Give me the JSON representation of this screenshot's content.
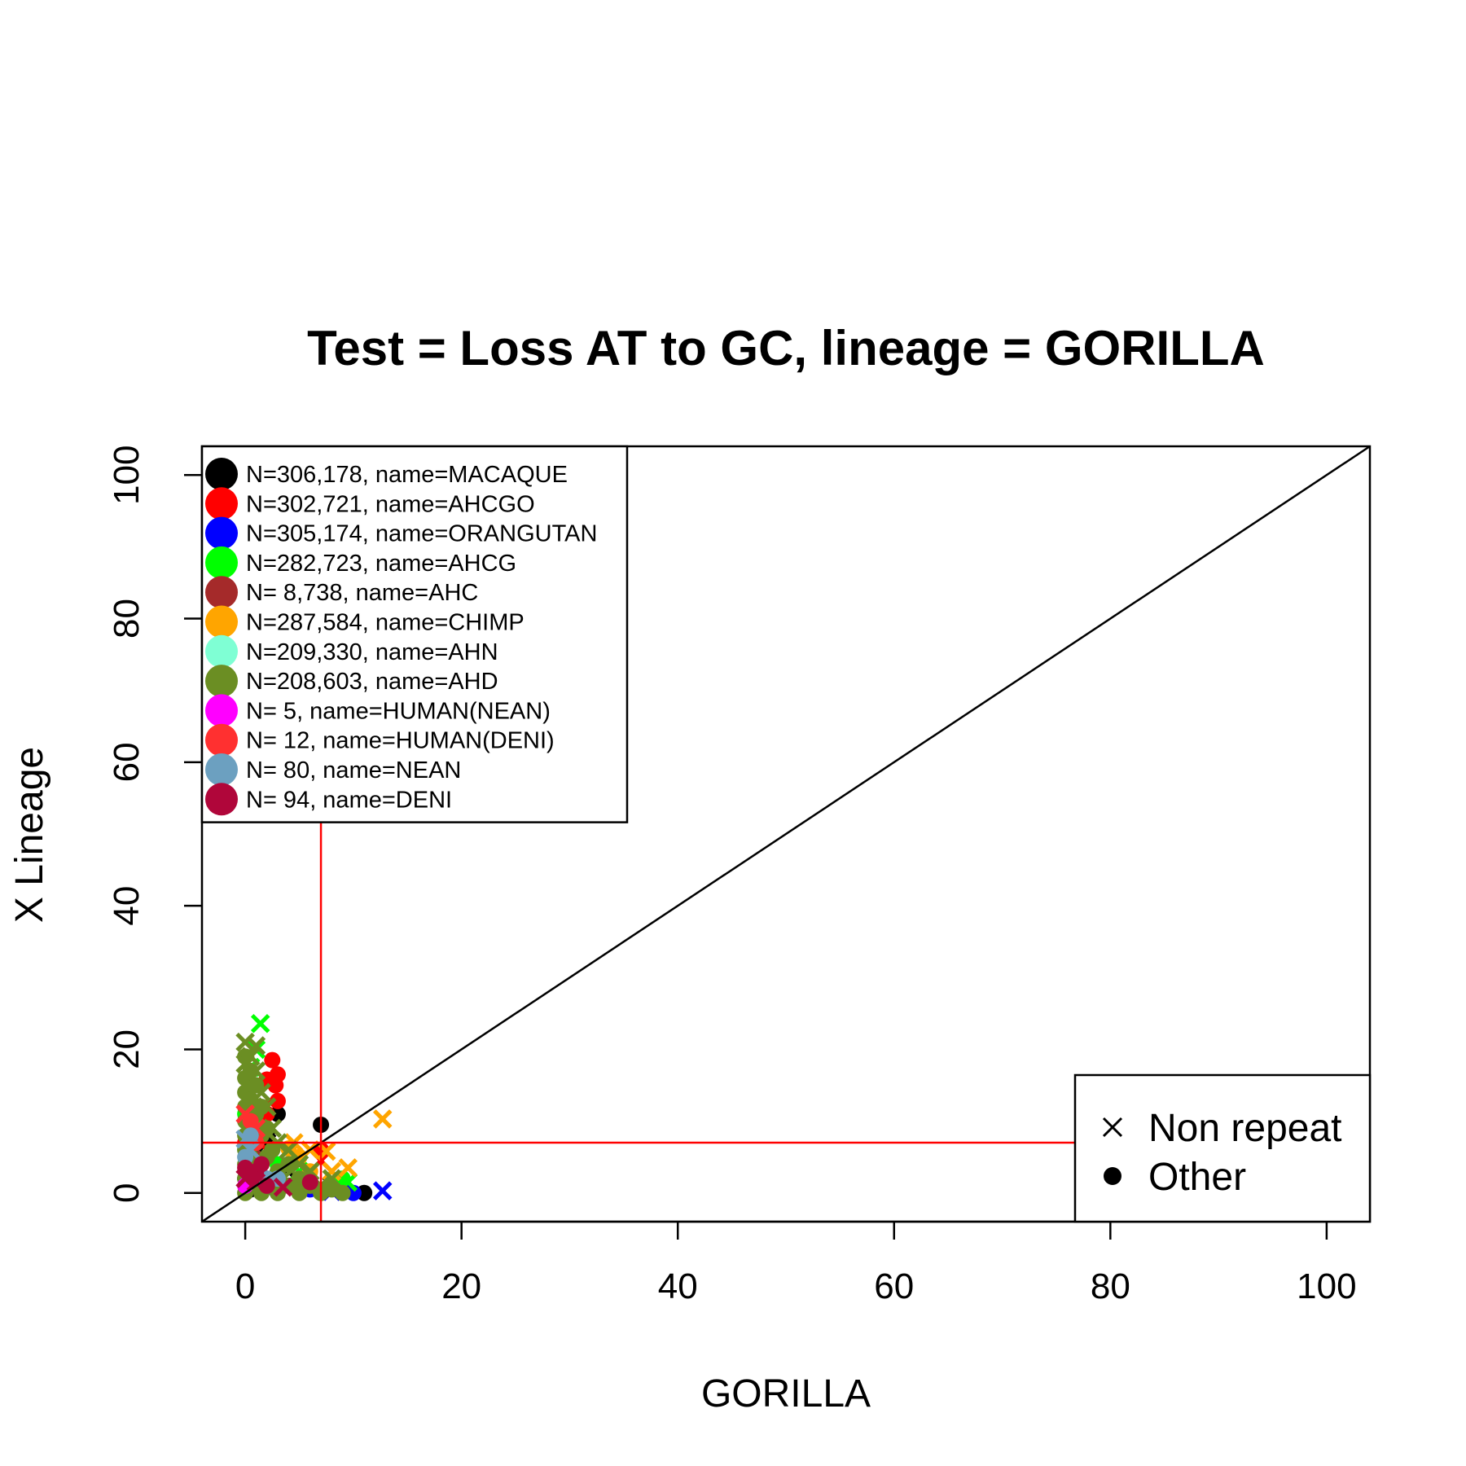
{
  "chart_data": {
    "type": "scatter",
    "title": "Test = Loss AT to GC, lineage = GORILLA",
    "xlabel": "GORILLA",
    "ylabel": "X Lineage",
    "xlim": [
      -4,
      104
    ],
    "ylim": [
      -4,
      104
    ],
    "xticks": [
      0,
      20,
      40,
      60,
      80,
      100
    ],
    "yticks": [
      0,
      20,
      40,
      60,
      80,
      100
    ],
    "reference_lines": {
      "diagonal": "y = x",
      "vertical_x": 7,
      "horizontal_y": 7,
      "threshold_color": "#ff0000"
    },
    "series": [
      {
        "label": "N=306,178, name=MACAQUE",
        "color": "#000000",
        "other": [
          [
            0,
            2
          ],
          [
            1,
            5
          ],
          [
            2,
            8
          ],
          [
            3,
            11
          ],
          [
            7,
            9.5
          ],
          [
            11,
            0
          ],
          [
            5,
            2
          ],
          [
            0.5,
            0.5
          ],
          [
            1,
            1
          ]
        ],
        "nonrepeat": [
          [
            1,
            4
          ],
          [
            2,
            7
          ],
          [
            4,
            3
          ],
          [
            8,
            1
          ]
        ]
      },
      {
        "label": "N=302,721, name=AHCGO",
        "color": "#ff0000",
        "other": [
          [
            2.5,
            18.5
          ],
          [
            3,
            16.5
          ],
          [
            2.8,
            15
          ],
          [
            3,
            12.8
          ],
          [
            2,
            11
          ],
          [
            2,
            15.8
          ],
          [
            1,
            9
          ],
          [
            0,
            7
          ],
          [
            7,
            6
          ]
        ],
        "nonrepeat": [
          [
            1.5,
            12
          ],
          [
            2,
            6
          ],
          [
            7,
            4.5
          ]
        ]
      },
      {
        "label": "N=305,174, name=ORANGUTAN",
        "color": "#0000ff",
        "other": [
          [
            4,
            1
          ],
          [
            6,
            0.5
          ],
          [
            9,
            0.5
          ],
          [
            10,
            0
          ]
        ],
        "nonrepeat": [
          [
            12.7,
            0.3
          ],
          [
            8,
            0.2
          ],
          [
            2,
            0.5
          ]
        ]
      },
      {
        "label": "N=282,723, name=AHCG",
        "color": "#00ff00",
        "other": [
          [
            0,
            11
          ],
          [
            1,
            9.5
          ],
          [
            3,
            4
          ],
          [
            9,
            2
          ]
        ],
        "nonrepeat": [
          [
            1.4,
            23.6
          ],
          [
            1,
            20
          ],
          [
            0.5,
            17.5
          ],
          [
            9.5,
            1.5
          ],
          [
            5,
            3
          ]
        ]
      },
      {
        "label": "N=  8,738, name=AHC",
        "color": "#a52a2a",
        "other": [
          [
            0.5,
            8
          ],
          [
            1,
            4
          ],
          [
            2,
            2
          ]
        ],
        "nonrepeat": [
          [
            1,
            6
          ]
        ]
      },
      {
        "label": "N=287,584, name=CHIMP",
        "color": "#ffa500",
        "other": [
          [
            5,
            5
          ],
          [
            6,
            3
          ],
          [
            4,
            6.2
          ],
          [
            3,
            2.5
          ]
        ],
        "nonrepeat": [
          [
            12.7,
            10.3
          ],
          [
            7.5,
            5.8
          ],
          [
            9.5,
            3.5
          ],
          [
            6,
            6
          ],
          [
            4.5,
            7
          ],
          [
            8,
            3
          ]
        ]
      },
      {
        "label": "N=209,330, name=AHN",
        "color": "#7fffd4",
        "other": [
          [
            0,
            6
          ],
          [
            1,
            2
          ],
          [
            0.5,
            3
          ]
        ],
        "nonrepeat": [
          [
            0.5,
            4
          ],
          [
            1,
            3
          ]
        ]
      },
      {
        "label": "N=208,603, name=AHD",
        "color": "#6b8e23",
        "other": [
          [
            0,
            19
          ],
          [
            0,
            16
          ],
          [
            0,
            14
          ],
          [
            0,
            12
          ],
          [
            0,
            10
          ],
          [
            0,
            8
          ],
          [
            0,
            6
          ],
          [
            0,
            4
          ],
          [
            0,
            2
          ],
          [
            0,
            0
          ],
          [
            0.5,
            17
          ],
          [
            0.5,
            13
          ],
          [
            0.5,
            9
          ],
          [
            0.5,
            5
          ],
          [
            0.5,
            1
          ],
          [
            1,
            15
          ],
          [
            1,
            11
          ],
          [
            1,
            7
          ],
          [
            1,
            3
          ],
          [
            1.5,
            12
          ],
          [
            1.5,
            8
          ],
          [
            1.5,
            4
          ],
          [
            1.5,
            0
          ],
          [
            2,
            9
          ],
          [
            2,
            5
          ],
          [
            2,
            1
          ],
          [
            2.5,
            6
          ],
          [
            2.5,
            2
          ],
          [
            3,
            3
          ],
          [
            3,
            0
          ],
          [
            4,
            1
          ],
          [
            4,
            4
          ],
          [
            5,
            2
          ],
          [
            5,
            0
          ],
          [
            6,
            1
          ],
          [
            7,
            0
          ],
          [
            8,
            0.5
          ],
          [
            9,
            0
          ]
        ],
        "nonrepeat": [
          [
            0,
            21
          ],
          [
            0.5,
            19
          ],
          [
            1,
            20.5
          ],
          [
            0,
            18
          ],
          [
            1,
            17
          ],
          [
            1.5,
            14
          ],
          [
            2,
            12
          ],
          [
            2.5,
            9
          ],
          [
            3,
            7
          ],
          [
            4,
            6
          ],
          [
            5,
            4
          ],
          [
            6,
            3
          ],
          [
            3.5,
            2
          ],
          [
            7,
            1
          ],
          [
            8,
            2
          ]
        ]
      },
      {
        "label": "N=     5, name=HUMAN(NEAN)",
        "color": "#ff00ff",
        "other": [
          [
            0,
            1
          ],
          [
            0.5,
            2
          ]
        ],
        "nonrepeat": []
      },
      {
        "label": "N=    12, name=HUMAN(DENI)",
        "color": "#ff3030",
        "other": [
          [
            0.5,
            10
          ],
          [
            1,
            7
          ]
        ],
        "nonrepeat": [
          [
            0,
            11
          ],
          [
            1,
            9
          ]
        ]
      },
      {
        "label": "N=    80, name=NEAN",
        "color": "#6ca0c0",
        "other": [
          [
            0,
            5
          ],
          [
            1,
            3
          ],
          [
            2,
            2
          ],
          [
            0.5,
            8
          ],
          [
            3,
            2
          ]
        ],
        "nonrepeat": [
          [
            0,
            7.5
          ],
          [
            0.5,
            6
          ]
        ]
      },
      {
        "label": "N=    94, name=DENI",
        "color": "#b0063a",
        "other": [
          [
            0,
            3.5
          ],
          [
            0.5,
            2.5
          ],
          [
            1,
            3
          ],
          [
            6,
            1.5
          ],
          [
            2,
            1
          ],
          [
            1.5,
            4
          ]
        ],
        "nonrepeat": [
          [
            3.5,
            0.8
          ],
          [
            0,
            2
          ],
          [
            1,
            1.5
          ]
        ]
      }
    ],
    "shape_legend": [
      {
        "symbol": "cross",
        "label": "Non repeat"
      },
      {
        "symbol": "dot",
        "label": "Other"
      }
    ]
  }
}
